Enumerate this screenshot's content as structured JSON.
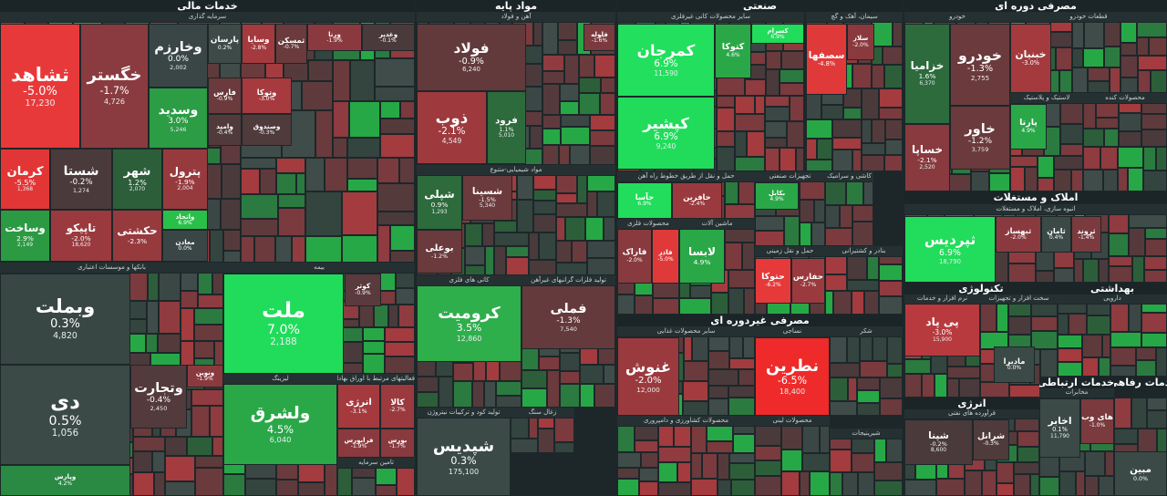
{
  "sectors": [
    {
      "title": "خدمات مالی",
      "groups": [
        {
          "title": "سرمایه گذاری",
          "tiles": [
            {
              "symbol": "ثشاهد",
              "change": "-5.0%",
              "volume": "17,230",
              "color": "#e8393a"
            },
            {
              "symbol": "خگستر",
              "change": "-1.7%",
              "volume": "4,726",
              "color": "#8a3b3f"
            },
            {
              "symbol": "وخارزم",
              "change": "0.0%",
              "volume": "2,002",
              "color": "#3a4646"
            },
            {
              "symbol": "وسدید",
              "change": "3.0%",
              "volume": "5,246",
              "color": "#2c9c45"
            },
            {
              "symbol": "کرمان",
              "change": "-5.5%",
              "volume": "1,368",
              "color": "#e23636"
            },
            {
              "symbol": "شستا",
              "change": "-0.2%",
              "volume": "1,274",
              "color": "#4a3a3c"
            },
            {
              "symbol": "شهر",
              "change": "1.2%",
              "volume": "2,070",
              "color": "#2d5e3a"
            },
            {
              "symbol": "پترول",
              "change": "-1.9%",
              "volume": "2,004",
              "color": "#973a3e"
            },
            {
              "symbol": "وساخت",
              "change": "2.9%",
              "volume": "2,149",
              "color": "#2b9a42"
            },
            {
              "symbol": "تاپیکو",
              "change": "-2.0%",
              "volume": "18,620",
              "color": "#9a3a3e"
            },
            {
              "symbol": "حکشتی",
              "change": "-2.3%",
              "color": "#963a3e"
            },
            {
              "symbol": "پارسان",
              "change": "0.2%",
              "color": "#3d4a48"
            },
            {
              "symbol": "وسایا",
              "change": "-2.8%",
              "color": "#a53a3e"
            },
            {
              "symbol": "ثمسکن",
              "change": "-0.7%",
              "color": "#6a3a3c"
            },
            {
              "symbol": "ورنا",
              "change": "-1.9%",
              "color": "#8a3a3e"
            },
            {
              "symbol": "وغدیر",
              "change": "-0.1%",
              "color": "#4a3a3c"
            },
            {
              "symbol": "فارس",
              "change": "-0.9%",
              "color": "#6a3a3c"
            },
            {
              "symbol": "وتوکا",
              "change": "-3.0%",
              "color": "#a73a3e"
            },
            {
              "symbol": "وامید",
              "change": "-0.4%",
              "color": "#503a3c"
            },
            {
              "symbol": "وصندوق",
              "change": "-0.3%",
              "color": "#4f3a3c"
            },
            {
              "symbol": "واتحاد",
              "change": "6.9%",
              "color": "#29c04a"
            },
            {
              "symbol": "معادن",
              "change": "0.0%",
              "color": "#3a4646"
            }
          ]
        },
        {
          "title": "بانکها و موسسات اعتباری",
          "tiles": [
            {
              "symbol": "وبملت",
              "change": "0.3%",
              "volume": "4,820",
              "color": "#394744"
            },
            {
              "symbol": "دی",
              "change": "0.5%",
              "volume": "1,056",
              "color": "#3b4a46"
            },
            {
              "symbol": "وتجارت",
              "change": "-0.4%",
              "volume": "2,450",
              "color": "#533a3c"
            },
            {
              "symbol": "ونوین",
              "change": "-1.9%",
              "color": "#8a3a3e"
            },
            {
              "symbol": "وپارس",
              "change": "4.2%",
              "color": "#2a8a44"
            }
          ]
        },
        {
          "title": "بیمه",
          "tiles": [
            {
              "symbol": "ملت",
              "change": "7.0%",
              "volume": "2,188",
              "color": "#21dc5b"
            },
            {
              "symbol": "کوثر",
              "change": "-0.9%",
              "color": "#5a3a3c"
            }
          ]
        },
        {
          "title": "لیزینگ",
          "tiles": [
            {
              "symbol": "ولشرق",
              "change": "4.5%",
              "volume": "6,040",
              "color": "#2aa848"
            }
          ]
        },
        {
          "title": "فعالیتهای مرتبط با اوراق بهادار",
          "tiles": [
            {
              "symbol": "انرژی",
              "change": "-3.1%",
              "color": "#a53a3e"
            },
            {
              "symbol": "کالا",
              "change": "-2.7%",
              "color": "#9a3a3e"
            },
            {
              "symbol": "فرابورس",
              "change": "-1.9%",
              "color": "#8a3a3e"
            },
            {
              "symbol": "بورس",
              "change": "-1.7%",
              "color": "#883a3e"
            }
          ]
        },
        {
          "title": "تامین سرمایه",
          "tiles": []
        }
      ]
    },
    {
      "title": "مواد پایه",
      "groups": [
        {
          "title": "آهن و فولاد",
          "tiles": [
            {
              "symbol": "فولاد",
              "change": "-0.9%",
              "volume": "6,240",
              "color": "#633a3c"
            },
            {
              "symbol": "ذوب",
              "change": "-2.1%",
              "volume": "4,549",
              "color": "#9e3a3e"
            },
            {
              "symbol": "فرود",
              "change": "1.1%",
              "volume": "5,010",
              "color": "#2d6a3c"
            },
            {
              "symbol": "فلوله",
              "change": "-1.6%",
              "color": "#7a3a3e"
            }
          ]
        },
        {
          "title": "مواد شیمیایی-متنوع",
          "tiles": [
            {
              "symbol": "شپلی",
              "change": "0.9%",
              "volume": "1,293",
              "color": "#2d6a3c"
            },
            {
              "symbol": "شسینا",
              "change": "-1.5%",
              "volume": "5,340",
              "color": "#6a3a3c"
            },
            {
              "symbol": "بوعلی",
              "change": "-1.2%",
              "color": "#6a3a3c"
            }
          ]
        },
        {
          "title": "کانی های فلزی",
          "tiles": [
            {
              "symbol": "کرومیت",
              "change": "3.5%",
              "volume": "12,860",
              "color": "#2fae4c"
            }
          ]
        },
        {
          "title": "تولید فلزات گرانبهای غیرآهن",
          "tiles": [
            {
              "symbol": "فملی",
              "change": "-1.3%",
              "volume": "7,540",
              "color": "#643a3c"
            }
          ]
        },
        {
          "title": "تولید کود و ترکیبات نیتروژن",
          "tiles": [
            {
              "symbol": "شپدیس",
              "change": "0.3%",
              "volume": "175,100",
              "color": "#3b4a46"
            }
          ]
        },
        {
          "title": "زغال سنگ",
          "tiles": []
        }
      ]
    },
    {
      "title": "صنعتی",
      "groups": [
        {
          "title": "سایر محصولات کانی غیرفلزی",
          "tiles": [
            {
              "symbol": "کمرجان",
              "change": "6.9%",
              "volume": "11,590",
              "color": "#22df5d"
            },
            {
              "symbol": "کپشیر",
              "change": "6.9%",
              "volume": "9,240",
              "color": "#21dc5b"
            },
            {
              "symbol": "کتوکا",
              "change": "4.6%",
              "color": "#2aa848"
            },
            {
              "symbol": "کسرام",
              "change": "6.9%",
              "color": "#22dc5b"
            }
          ]
        },
        {
          "title": "سیمان، آهک و گچ",
          "tiles": [
            {
              "symbol": "سصفها",
              "change": "-4.8%",
              "color": "#e0393a"
            },
            {
              "symbol": "سلار",
              "change": "-2.0%",
              "color": "#8a3a3e"
            }
          ]
        },
        {
          "title": "حمل و نقل از طریق خطوط راه آهن",
          "tiles": [
            {
              "symbol": "حآسا",
              "change": "6.9%",
              "color": "#22dc5b"
            },
            {
              "symbol": "حافرین",
              "change": "-2.4%",
              "color": "#9a3a3e"
            }
          ]
        },
        {
          "title": "تجهیزات صنعتی",
          "tiles": [
            {
              "symbol": "بکابل",
              "change": "4.9%",
              "color": "#2aa848"
            }
          ]
        },
        {
          "title": "کاشی و سرامیک",
          "tiles": []
        },
        {
          "title": "محصولات فلزی",
          "tiles": [
            {
              "symbol": "فاراک",
              "change": "-2.0%",
              "color": "#883a3e"
            },
            {
              "symbol": "فاذر",
              "change": "-5.0%",
              "color": "#e0393a"
            }
          ]
        },
        {
          "title": "ماشین آلات",
          "tiles": [
            {
              "symbol": "لابسا",
              "change": "4.9%",
              "color": "#2aa848"
            }
          ]
        },
        {
          "title": "حمل و نقل زمینی",
          "tiles": [
            {
              "symbol": "حتوکا",
              "change": "-6.2%",
              "color": "#e6393a"
            },
            {
              "symbol": "حفارس",
              "change": "-2.7%",
              "color": "#9a3a3e"
            }
          ]
        },
        {
          "title": "بنادر و کشتیرانی",
          "tiles": []
        }
      ]
    },
    {
      "title": "مصرفی غیردوره ای",
      "groups": [
        {
          "title": "سایر محصولات غذایی",
          "tiles": [
            {
              "symbol": "غنوش",
              "change": "-2.0%",
              "volume": "12,000",
              "color": "#9a3a3e"
            }
          ]
        },
        {
          "title": "نساجی",
          "tiles": [
            {
              "symbol": "نطرین",
              "change": "-6.5%",
              "volume": "18,400",
              "color": "#ee2a2a"
            }
          ]
        },
        {
          "title": "شکر",
          "tiles": []
        },
        {
          "title": "محصولات کشاورزی و دامپروری",
          "tiles": []
        },
        {
          "title": "محصولات لبنی",
          "tiles": []
        },
        {
          "title": "شیرینیجات",
          "tiles": []
        }
      ]
    },
    {
      "title": "مصرفی دوره ای",
      "groups": [
        {
          "title": "خودرو",
          "tiles": [
            {
              "symbol": "خزامیا",
              "change": "1.6%",
              "volume": "6,370",
              "color": "#2d6a3c"
            },
            {
              "symbol": "خودرو",
              "change": "-1.3%",
              "volume": "2,755",
              "color": "#6a3a3c"
            },
            {
              "symbol": "خساپا",
              "change": "-2.1%",
              "volume": "2,520",
              "color": "#883a3e"
            },
            {
              "symbol": "خاور",
              "change": "-1.2%",
              "volume": "3,759",
              "color": "#6a3a3c"
            }
          ]
        },
        {
          "title": "قطعات خودرو",
          "tiles": [
            {
              "symbol": "خبنیان",
              "change": "-3.0%",
              "color": "#a53a3e"
            }
          ]
        },
        {
          "title": "لاستیک و پلاستیک",
          "tiles": [
            {
              "symbol": "پارتا",
              "change": "4.9%",
              "color": "#2aa848"
            }
          ]
        },
        {
          "title": "محصولات کنده",
          "tiles": []
        }
      ]
    },
    {
      "title": "املاک و مستغلات",
      "groups": [
        {
          "title": "انبوه سازی، املاک و مستغلات",
          "tiles": [
            {
              "symbol": "ثپردیس",
              "change": "6.9%",
              "volume": "18,790",
              "color": "#22dc5b"
            },
            {
              "symbol": "ثبهساز",
              "change": "-2.0%",
              "color": "#8a3a3e"
            },
            {
              "symbol": "ثامان",
              "change": "0.4%",
              "color": "#3b4a46"
            },
            {
              "symbol": "ثروند",
              "change": "-1.4%",
              "color": "#7a3a3e"
            }
          ]
        }
      ]
    },
    {
      "title": "تکنولوژی",
      "groups": [
        {
          "title": "نرم افزار و خدمات",
          "tiles": [
            {
              "symbol": "پی پاد",
              "change": "-3.0%",
              "volume": "15,900",
              "color": "#b83a3e"
            }
          ]
        },
        {
          "title": "سخت افزار و تجهیزات",
          "tiles": [
            {
              "symbol": "مادیرا",
              "change": "0.0%",
              "color": "#3b4a46"
            }
          ]
        }
      ]
    },
    {
      "title": "بهداشتی",
      "groups": [
        {
          "title": "دارویی",
          "tiles": []
        }
      ]
    },
    {
      "title": "انرژی",
      "groups": [
        {
          "title": "فرآورده های نفتی",
          "tiles": [
            {
              "symbol": "شپنا",
              "change": "-0.2%",
              "volume": "8,600",
              "color": "#4a3a3c"
            },
            {
              "symbol": "شرانل",
              "change": "-0.3%",
              "color": "#4f3a3c"
            }
          ]
        }
      ]
    },
    {
      "title": "خدمات ارتباطی",
      "groups": [
        {
          "title": "مخابرات",
          "tiles": [
            {
              "symbol": "اخابر",
              "change": "0.1%",
              "volume": "11,790",
              "color": "#3b4a46"
            },
            {
              "symbol": "های وب",
              "change": "-1.0%",
              "color": "#7a3a3e"
            }
          ]
        }
      ]
    },
    {
      "title": "خدمات رفاهی",
      "groups": [
        {
          "tiles": [
            {
              "symbol": "مبین",
              "change": "0.0%",
              "color": "#3b4a46"
            }
          ]
        }
      ]
    }
  ]
}
